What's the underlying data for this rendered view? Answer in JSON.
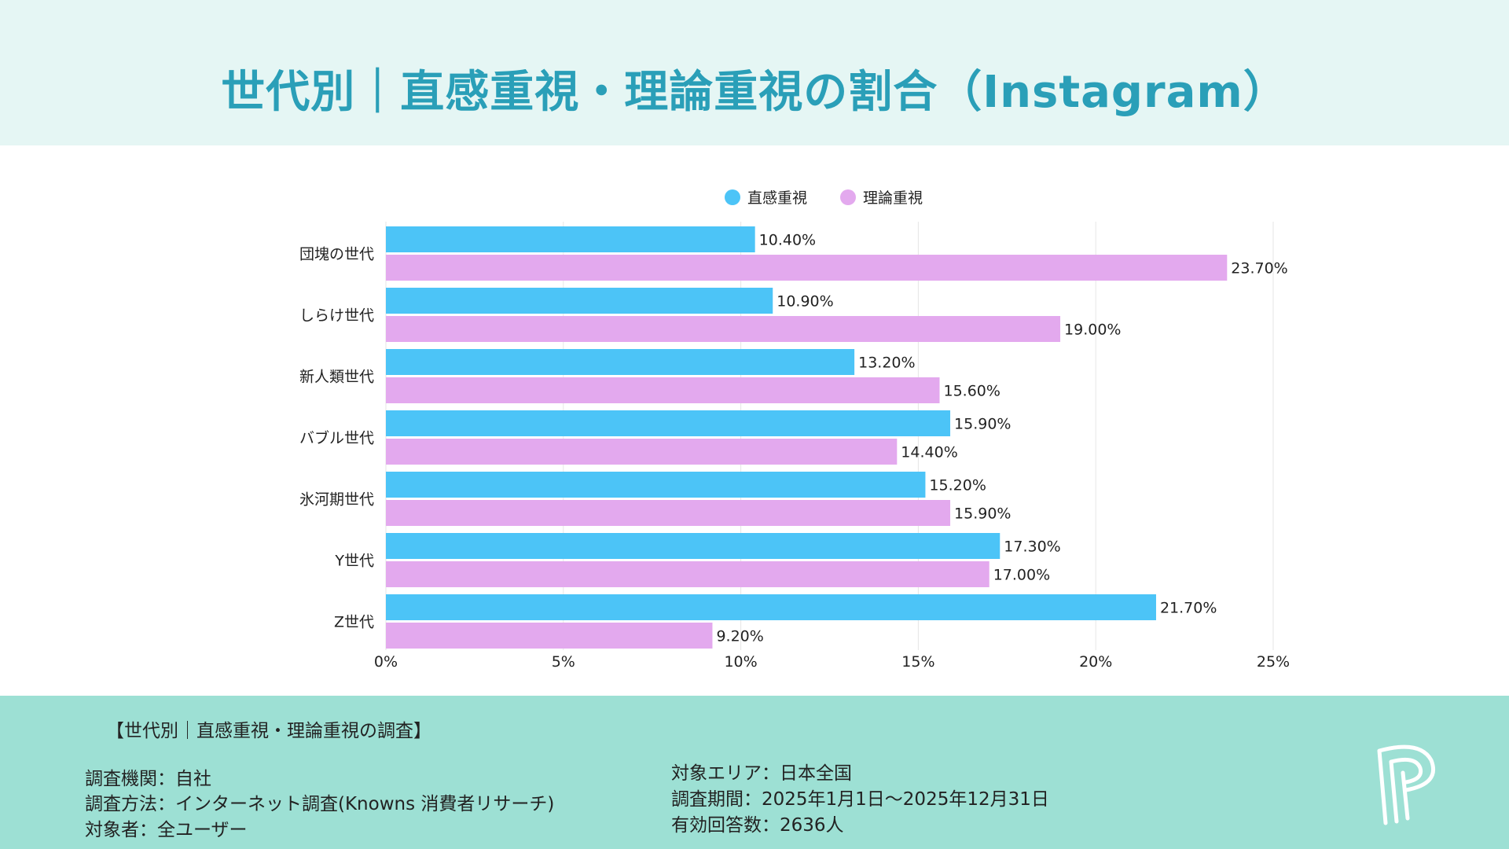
{
  "title": "世代別｜直感重視・理論重視の割合（Instagram）",
  "colors": {
    "header_bg": "#e5f6f4",
    "title": "#2a9fb8",
    "footer_bg": "#9de0d4",
    "series_intuition": "#4cc4f7",
    "series_logic": "#e3a9ee",
    "grid": "#e6e6e6"
  },
  "chart_data": {
    "type": "bar",
    "orientation": "horizontal",
    "categories": [
      "団塊の世代",
      "しらけ世代",
      "新人類世代",
      "バブル世代",
      "氷河期世代",
      "Y世代",
      "Z世代"
    ],
    "series": [
      {
        "name": "直感重視",
        "values": [
          10.4,
          10.9,
          13.2,
          15.9,
          15.2,
          17.3,
          21.7
        ],
        "labels": [
          "10.40%",
          "10.90%",
          "13.20%",
          "15.90%",
          "15.20%",
          "17.30%",
          "21.70%"
        ]
      },
      {
        "name": "理論重視",
        "values": [
          23.7,
          19.0,
          15.6,
          14.4,
          15.9,
          17.0,
          9.2
        ],
        "labels": [
          "23.70%",
          "19.00%",
          "15.60%",
          "14.40%",
          "15.90%",
          "17.00%",
          "9.20%"
        ]
      }
    ],
    "xlim": [
      0,
      25
    ],
    "xticks": [
      0,
      5,
      10,
      15,
      20,
      25
    ],
    "xtick_labels": [
      "0%",
      "5%",
      "10%",
      "15%",
      "20%",
      "25%"
    ],
    "legend_position": "top-center",
    "grid": true
  },
  "footer": {
    "heading": "【世代別｜直感重視・理論重視の調査】",
    "left": [
      "調査機関：自社",
      "調査方法：インターネット調査(Knowns 消費者リサーチ)",
      "対象者：全ユーザー"
    ],
    "right": [
      "対象エリア：日本全国",
      "調査期間：2025年1月1日〜2025年12月31日",
      "有効回答数：2636人"
    ],
    "logo_icon": "p-logo-icon"
  }
}
